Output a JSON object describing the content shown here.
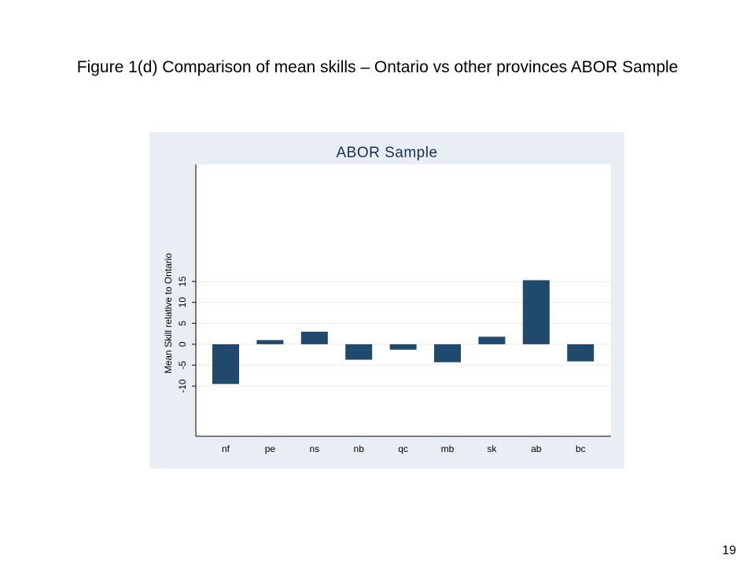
{
  "slide": {
    "title": "Figure 1(d) Comparison of mean skills – Ontario vs other provinces ABOR Sample",
    "page_number": "19"
  },
  "chart_data": {
    "type": "bar",
    "title": "ABOR Sample",
    "xlabel": "",
    "ylabel": "Mean Skill relative to Ontario",
    "categories": [
      "nf",
      "pe",
      "ns",
      "nb",
      "qc",
      "mb",
      "sk",
      "ab",
      "bc"
    ],
    "values": [
      -9.5,
      1.0,
      3.0,
      -3.7,
      -1.3,
      -4.3,
      1.8,
      15.3,
      -4.1
    ],
    "yticks": [
      -10,
      -5,
      0,
      5,
      10,
      15
    ],
    "ylim": [
      -22,
      43
    ],
    "grid": true,
    "legend": "none",
    "bar_color": "#1f4a6e",
    "grid_color": "#e6ebef",
    "background_color": "#e8eef3"
  }
}
